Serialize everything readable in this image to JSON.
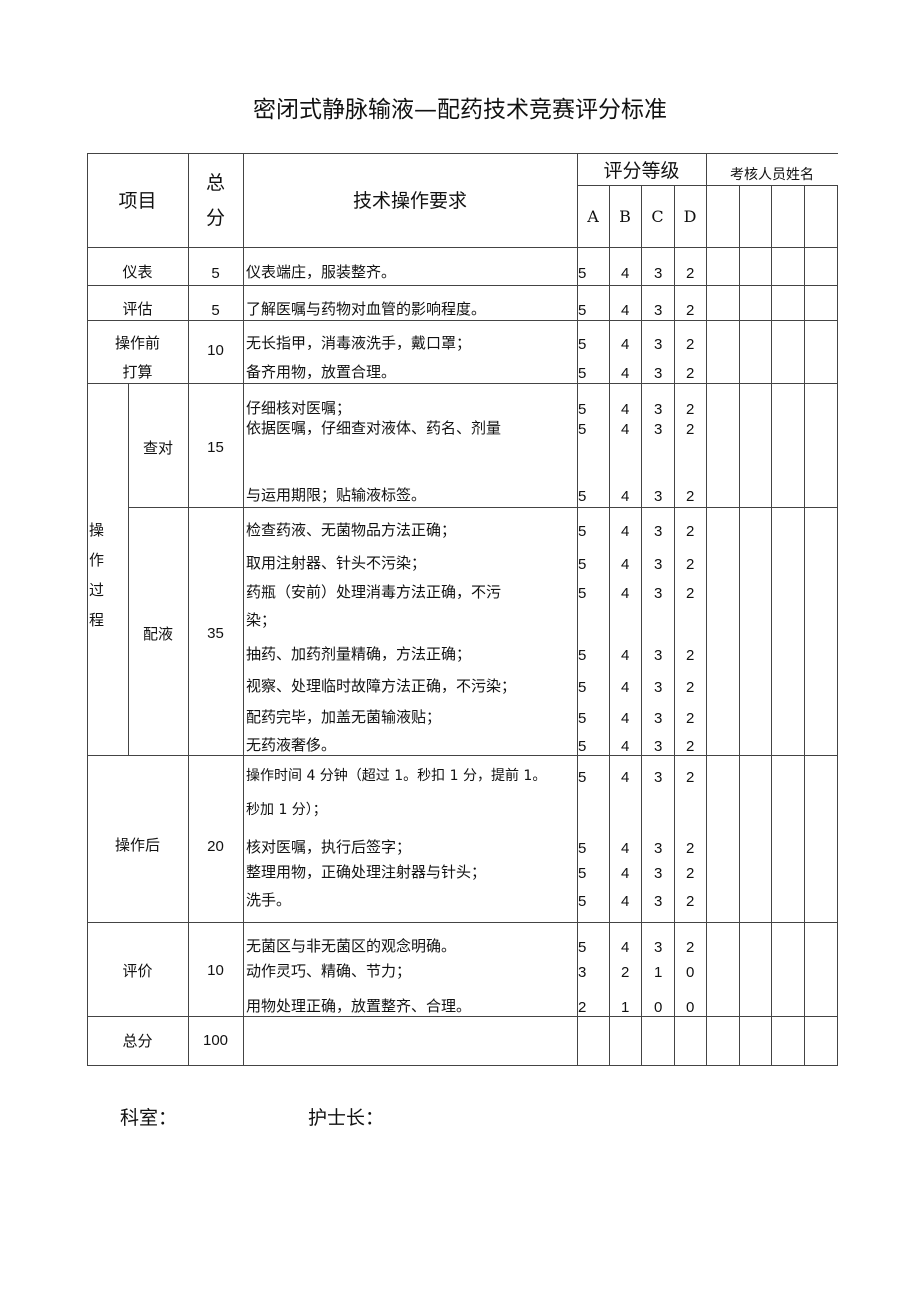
{
  "title": "密闭式静脉输液—配药技术竞赛评分标准",
  "header": {
    "item": "项目",
    "total_l1": "总",
    "total_l2": "分",
    "req": "技术操作要求",
    "grade": "评分等级",
    "grades": [
      "A",
      "B",
      "C",
      "D"
    ],
    "examiner": "考核人员姓名"
  },
  "rows": [
    {
      "item": "仪表",
      "score": "5",
      "lines": [
        {
          "text": "仪表端庄，服装整齐。",
          "scores": [
            "5",
            "4",
            "3",
            "2"
          ]
        }
      ]
    },
    {
      "item": "评估",
      "score": "5",
      "lines": [
        {
          "text": "了解医嘱与药物对血管的影响程度。",
          "scores": [
            "5",
            "4",
            "3",
            "2"
          ]
        }
      ]
    },
    {
      "item": "操作前",
      "item2": "打算",
      "score": "10",
      "lines": [
        {
          "text": "无长指甲，消毒液洗手，戴口罩；",
          "scores": [
            "5",
            "4",
            "3",
            "2"
          ]
        },
        {
          "text": "备齐用物，放置合理。",
          "scores": [
            "5",
            "4",
            "3",
            "2"
          ]
        }
      ]
    },
    {
      "group": "操作过程",
      "item": "查对",
      "score": "15",
      "lines": [
        {
          "text": "仔细核对医嘱；",
          "scores": [
            "5",
            "4",
            "3",
            "2"
          ]
        },
        {
          "text": "依据医嘱，仔细查对液体、药名、剂量",
          "scores": [
            "5",
            "4",
            "3",
            "2"
          ]
        },
        {
          "text": "与运用期限；贴输液标签。",
          "scores": [
            "5",
            "4",
            "3",
            "2"
          ]
        }
      ]
    },
    {
      "item": "配液",
      "score": "35",
      "lines": [
        {
          "text": "检查药液、无菌物品方法正确；",
          "scores": [
            "5",
            "4",
            "3",
            "2"
          ]
        },
        {
          "text": "取用注射器、针头不污染；",
          "scores": [
            "5",
            "4",
            "3",
            "2"
          ]
        },
        {
          "text": "药瓶（安前）处理消毒方法正确，不污",
          "scores": [
            "5",
            "4",
            "3",
            "2"
          ]
        },
        {
          "text": "染；",
          "scores": []
        },
        {
          "text": "抽药、加药剂量精确，方法正确；",
          "scores": [
            "5",
            "4",
            "3",
            "2"
          ]
        },
        {
          "text": "视察、处理临时故障方法正确，不污染；",
          "scores": [
            "5",
            "4",
            "3",
            "2"
          ]
        },
        {
          "text": "配药完毕，加盖无菌输液贴；",
          "scores": [
            "5",
            "4",
            "3",
            "2"
          ]
        },
        {
          "text": "无药液奢侈。",
          "scores": [
            "5",
            "4",
            "3",
            "2"
          ]
        }
      ]
    },
    {
      "item": "操作后",
      "score": "20",
      "lines": [
        {
          "text": "操作时间 4 分钟（超过 1。秒扣 1 分，提前 1。",
          "scores": [
            "5",
            "4",
            "3",
            "2"
          ]
        },
        {
          "text": "秒加 1 分）；",
          "scores": []
        },
        {
          "text": "核对医嘱，执行后签字；",
          "scores": [
            "5",
            "4",
            "3",
            "2"
          ]
        },
        {
          "text": "整理用物，正确处理注射器与针头；",
          "scores": [
            "5",
            "4",
            "3",
            "2"
          ]
        },
        {
          "text": "洗手。",
          "scores": [
            "5",
            "4",
            "3",
            "2"
          ]
        }
      ]
    },
    {
      "item": "评价",
      "score": "10",
      "lines": [
        {
          "text": "无菌区与非无菌区的观念明确。",
          "scores": [
            "5",
            "4",
            "3",
            "2"
          ]
        },
        {
          "text": "动作灵巧、精确、节力；",
          "scores": [
            "3",
            "2",
            "1",
            "0"
          ]
        },
        {
          "text": "用物处理正确，放置整齐、合理。",
          "scores": [
            "2",
            "1",
            "0",
            "0"
          ]
        }
      ]
    },
    {
      "item": "总分",
      "score": "100",
      "lines": []
    }
  ],
  "footer": {
    "dept": "科室：",
    "head_nurse": "护士长："
  }
}
